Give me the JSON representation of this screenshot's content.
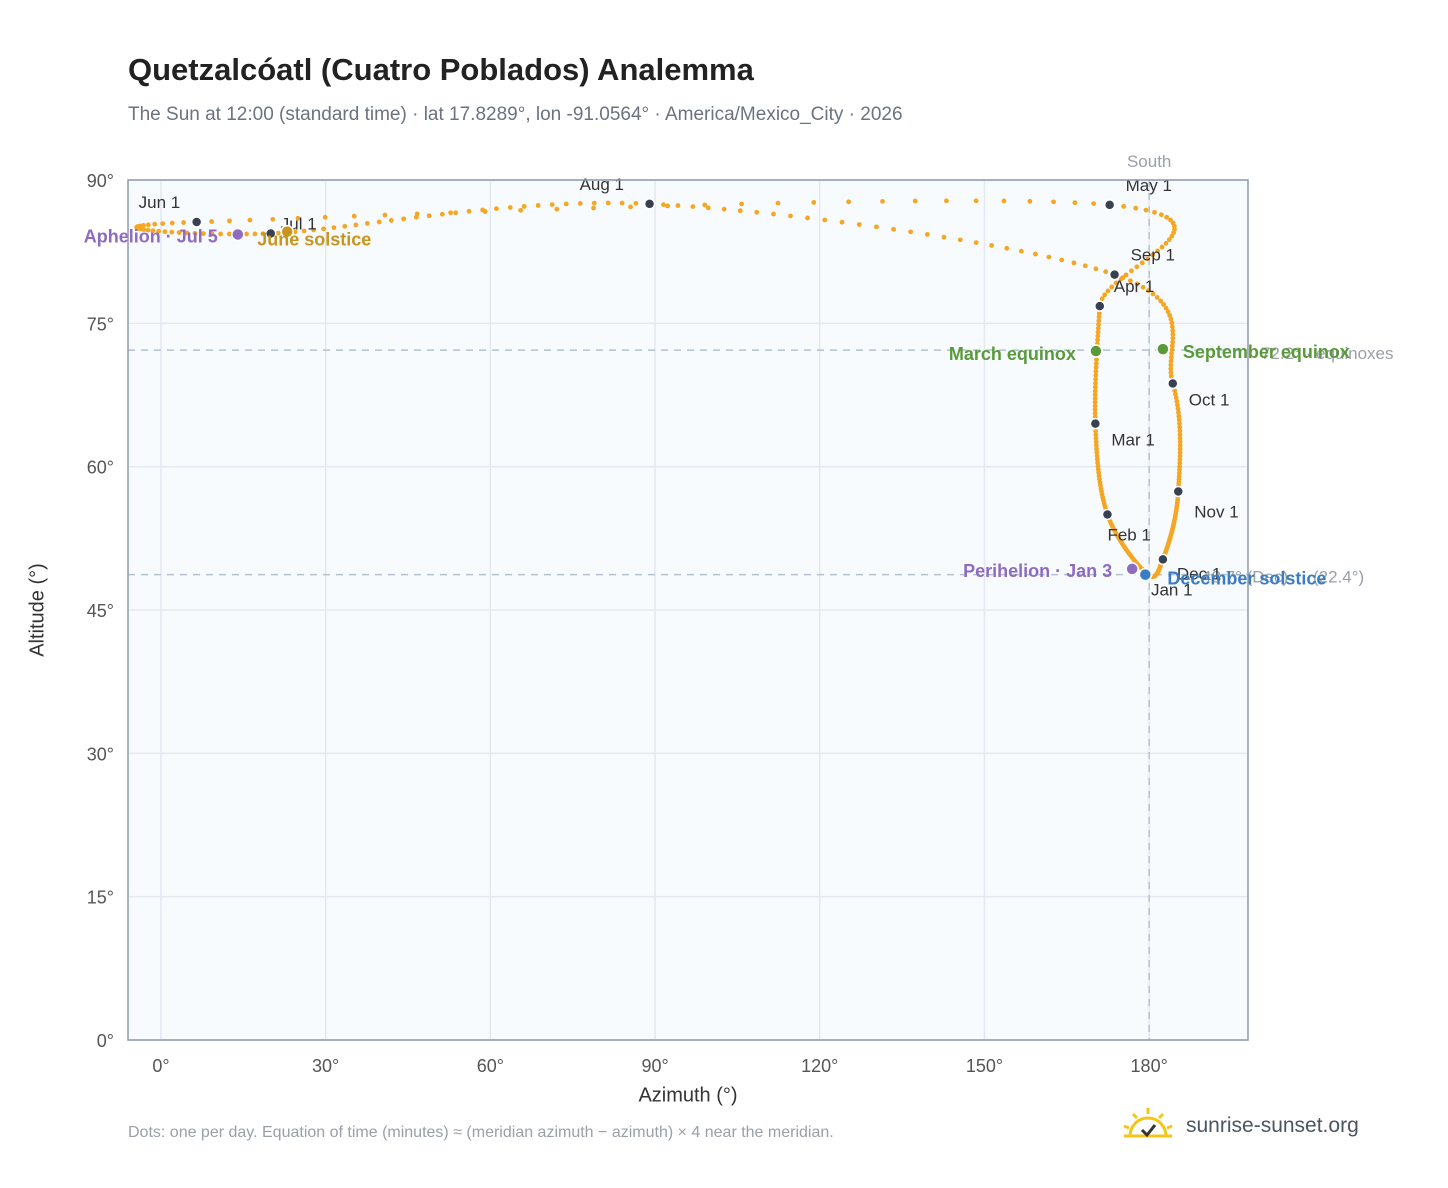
{
  "header": {
    "title": "Quetzalcóatl (Cuatro Poblados) Analemma",
    "subtitle": "The Sun at 12:00 (standard time) · lat 17.8289°, lon -91.0564° · America/Mexico_City · 2026"
  },
  "footer": {
    "note": "Dots: one per day. Equation of time (minutes) ≈ (meridian azimuth − azimuth) × 4 near the meridian.",
    "brand": "sunrise-sunset.org"
  },
  "colors": {
    "curve": "#f5a623",
    "month_marker": "#374151",
    "solstice_june": "#c8951e",
    "solstice_december": "#3b7dc4",
    "equinox": "#5a9a3a",
    "apsis": "#8e6bbf",
    "reference_line": "#b4c1cf",
    "plot_background": "#f8fbfe",
    "grid": "#e3e9f0"
  },
  "chart_data": {
    "type": "scatter",
    "xlabel": "Azimuth (°)",
    "ylabel": "Altitude (°)",
    "xlim": [
      -6,
      198
    ],
    "ylim": [
      0,
      90
    ],
    "xticks": [
      "0°",
      "30°",
      "60°",
      "90°",
      "120°",
      "150°",
      "180°"
    ],
    "xtick_values": [
      0,
      30,
      60,
      90,
      120,
      150,
      180
    ],
    "yticks": [
      "0°",
      "15°",
      "30°",
      "45°",
      "60°",
      "75°",
      "90°"
    ],
    "ytick_values": [
      0,
      15,
      30,
      45,
      60,
      75,
      90
    ],
    "grid": true,
    "daily_series": "one dot per day, 2026",
    "month_markers": [
      {
        "label": "Jan 1",
        "az": 179.6,
        "alt": 48.8
      },
      {
        "label": "Feb 1",
        "az": 172.4,
        "alt": 55.0
      },
      {
        "label": "Mar 1",
        "az": 170.2,
        "alt": 64.5
      },
      {
        "label": "Apr 1",
        "az": 171.0,
        "alt": 76.8
      },
      {
        "label": "May 1",
        "az": 172.8,
        "alt": 87.4
      },
      {
        "label": "Jun 1",
        "az": 6.5,
        "alt": 85.6
      },
      {
        "label": "Jul 1",
        "az": 20.0,
        "alt": 84.4
      },
      {
        "label": "Aug 1",
        "az": 89.0,
        "alt": 87.5
      },
      {
        "label": "Sep 1",
        "az": 173.7,
        "alt": 80.1
      },
      {
        "label": "Oct 1",
        "az": 184.3,
        "alt": 68.7
      },
      {
        "label": "Nov 1",
        "az": 185.3,
        "alt": 57.4
      },
      {
        "label": "Dec 1",
        "az": 182.5,
        "alt": 50.3
      }
    ],
    "events": [
      {
        "label": "June solstice",
        "az": 23.0,
        "alt": 84.6
      },
      {
        "label": "December solstice",
        "az": 179.3,
        "alt": 48.7
      },
      {
        "label": "March equinox",
        "az": 170.3,
        "alt": 72.1
      },
      {
        "label": "September equinox",
        "az": 182.5,
        "alt": 72.3
      },
      {
        "label": "Aphelion · Jul 5",
        "az": 14.0,
        "alt": 84.3
      },
      {
        "label": "Perihelion · Jan 3",
        "az": 176.9,
        "alt": 49.3
      }
    ],
    "reference_lines": [
      {
        "label": "South",
        "axis": "x",
        "value": 180
      },
      {
        "label": "72.2° · equinoxes",
        "axis": "y",
        "value": 72.2
      },
      {
        "label": "48.7° (Dec)",
        "axis": "y",
        "value": 48.7
      },
      {
        "label": "(22.4°)",
        "axis": "y",
        "value": 48.7
      }
    ]
  }
}
